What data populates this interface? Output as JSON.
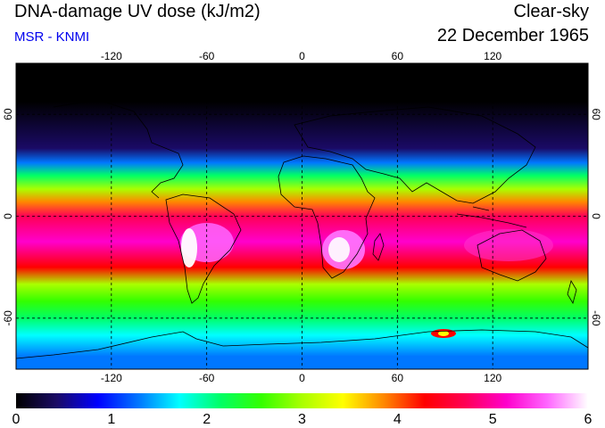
{
  "header": {
    "title": "DNA-damage UV dose (kJ/m2)",
    "subtitle": "MSR - KNMI",
    "condition": "Clear-sky",
    "date": "22 December 1965"
  },
  "colors": {
    "subtitle": "#0000ee",
    "scale": [
      "#000000",
      "#1a0a66",
      "#0000ff",
      "#0077ff",
      "#00ffff",
      "#00ff66",
      "#33ff00",
      "#aaff00",
      "#ffff00",
      "#ff8800",
      "#ff0000",
      "#ff0055",
      "#ff00cc",
      "#ff66ff",
      "#ffffff"
    ]
  },
  "map": {
    "lon_ticks": [
      "-120",
      "-60",
      "0",
      "60",
      "120"
    ],
    "lat_ticks": [
      "60",
      "0",
      "-60"
    ],
    "lon_values": [
      -120,
      -60,
      0,
      60,
      120
    ],
    "lat_values": [
      60,
      0,
      -60
    ]
  },
  "colorbar": {
    "labels": [
      "0",
      "1",
      "2",
      "3",
      "4",
      "5",
      "6"
    ],
    "min": 0,
    "max": 6
  },
  "dose_bands": [
    {
      "lat_from": 90,
      "lat_to": 45,
      "dose": 0.0
    },
    {
      "lat_from": 45,
      "lat_to": 35,
      "dose": 0.4
    },
    {
      "lat_from": 35,
      "lat_to": 28,
      "dose": 1.3
    },
    {
      "lat_from": 28,
      "lat_to": 20,
      "dose": 2.0
    },
    {
      "lat_from": 20,
      "lat_to": 12,
      "dose": 3.0
    },
    {
      "lat_from": 12,
      "lat_to": 5,
      "dose": 3.8
    },
    {
      "lat_from": 5,
      "lat_to": -5,
      "dose": 4.5
    },
    {
      "lat_from": -5,
      "lat_to": -25,
      "dose": 5.0
    },
    {
      "lat_from": -25,
      "lat_to": -35,
      "dose": 4.4
    },
    {
      "lat_from": -35,
      "lat_to": -45,
      "dose": 3.2
    },
    {
      "lat_from": -45,
      "lat_to": -55,
      "dose": 2.6
    },
    {
      "lat_from": -55,
      "lat_to": -65,
      "dose": 2.2
    },
    {
      "lat_from": -65,
      "lat_to": -75,
      "dose": 1.8
    },
    {
      "lat_from": -75,
      "lat_to": -90,
      "dose": 1.3
    }
  ]
}
